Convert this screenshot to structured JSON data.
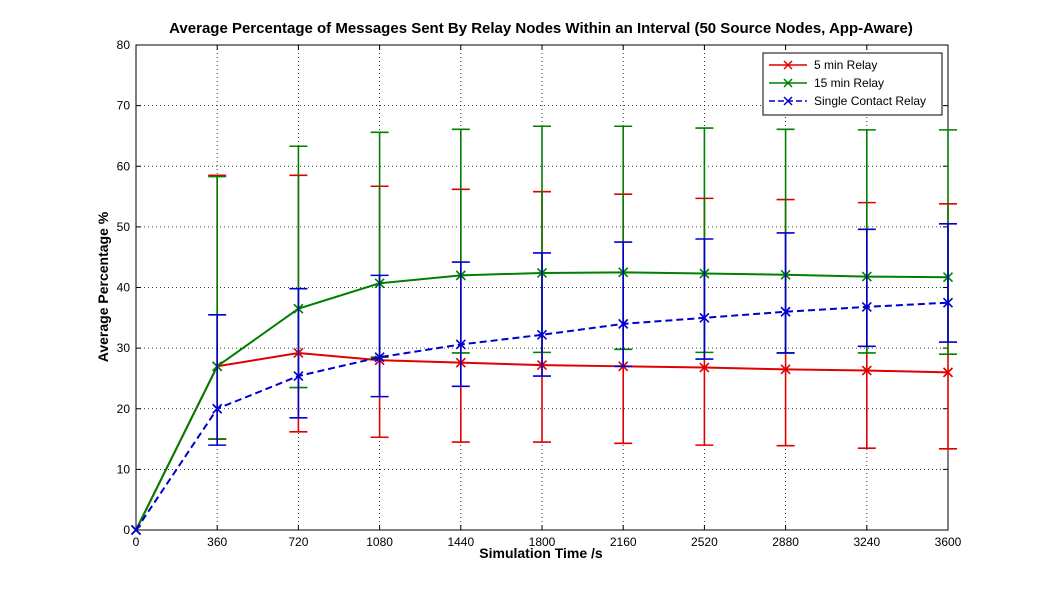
{
  "chart_data": {
    "type": "line",
    "title": "Average Percentage of Messages Sent By Relay Nodes Within an Interval (50 Source Nodes, App-Aware)",
    "xlabel": "Simulation Time /s",
    "ylabel": "Average Percentage %",
    "xlim": [
      0,
      3600
    ],
    "ylim": [
      0,
      80
    ],
    "x_ticks": [
      0,
      360,
      720,
      1080,
      1440,
      1800,
      2160,
      2520,
      2880,
      3240,
      3600
    ],
    "y_ticks": [
      0,
      10,
      20,
      30,
      40,
      50,
      60,
      70,
      80
    ],
    "grid": true,
    "legend_position": "top-right",
    "x": [
      0,
      360,
      720,
      1080,
      1440,
      1800,
      2160,
      2520,
      2880,
      3240,
      3600
    ],
    "series": [
      {
        "name": "5 min Relay",
        "color": "#e00000",
        "style": "solid",
        "values": [
          0,
          27,
          29.2,
          28,
          27.6,
          27.2,
          27,
          26.8,
          26.5,
          26.3,
          26
        ],
        "error_low": [
          0,
          15,
          16.2,
          15.3,
          14.5,
          14.5,
          14.3,
          14,
          13.9,
          13.5,
          13.4
        ],
        "error_high": [
          0,
          58.5,
          58.5,
          56.7,
          56.2,
          55.8,
          55.4,
          54.7,
          54.5,
          54,
          53.8
        ]
      },
      {
        "name": "15 min Relay",
        "color": "#007f00",
        "style": "solid",
        "values": [
          0,
          27,
          36.5,
          40.7,
          42,
          42.4,
          42.5,
          42.3,
          42.1,
          41.8,
          41.7
        ],
        "error_low": [
          0,
          15,
          23.5,
          28.5,
          29.2,
          29.3,
          29.8,
          29.3,
          29.2,
          29.2,
          29
        ],
        "error_high": [
          0,
          58.3,
          63.3,
          65.6,
          66.1,
          66.6,
          66.6,
          66.3,
          66.1,
          66,
          66
        ]
      },
      {
        "name": "Single Contact Relay",
        "color": "#0000d0",
        "style": "dashed",
        "values": [
          0,
          20,
          25.4,
          28.5,
          30.6,
          32.2,
          34,
          35,
          36,
          36.8,
          37.5
        ],
        "error_low": [
          0,
          14,
          18.5,
          22,
          23.7,
          25.4,
          27,
          28.2,
          29.2,
          30.3,
          31
        ],
        "error_high": [
          0,
          35.5,
          39.8,
          42,
          44.2,
          45.7,
          47.5,
          48,
          49,
          49.6,
          50.5
        ]
      }
    ]
  }
}
